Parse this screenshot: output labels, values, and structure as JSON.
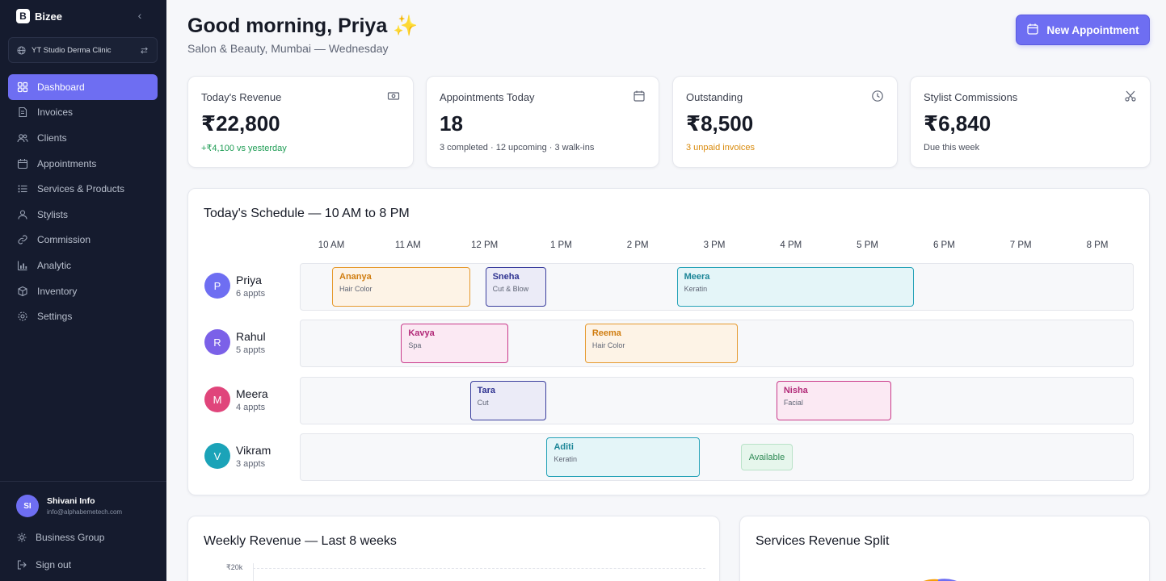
{
  "app": {
    "name": "Bizee",
    "logo_letter": "B"
  },
  "org": {
    "name": "YT Studio Derma Clinic"
  },
  "nav": [
    {
      "label": "Dashboard",
      "icon": "grid-icon",
      "active": true
    },
    {
      "label": "Invoices",
      "icon": "document-icon"
    },
    {
      "label": "Clients",
      "icon": "users-icon"
    },
    {
      "label": "Appointments",
      "icon": "calendar-icon"
    },
    {
      "label": "Services & Products",
      "icon": "list-icon"
    },
    {
      "label": "Stylists",
      "icon": "user-icon"
    },
    {
      "label": "Commission",
      "icon": "link-icon"
    },
    {
      "label": "Analytic",
      "icon": "bar-chart-icon"
    },
    {
      "label": "Inventory",
      "icon": "box-icon"
    },
    {
      "label": "Settings",
      "icon": "gear-icon"
    }
  ],
  "user": {
    "initials": "SI",
    "name": "Shivani Info",
    "email": "info@alphabemetech.com"
  },
  "footer": {
    "business_group": "Business Group",
    "sign_out": "Sign out"
  },
  "header": {
    "greeting": "Good morning, Priya ✨",
    "subtitle": "Salon & Beauty, Mumbai — Wednesday",
    "new_button": "New Appointment"
  },
  "kpis": [
    {
      "title": "Today's Revenue",
      "value": "₹22,800",
      "note": "+₹4,100 vs yesterday",
      "note_color": "#1f9d55",
      "icon": "cash-icon"
    },
    {
      "title": "Appointments Today",
      "value": "18",
      "note": "3 completed · 12 upcoming · 3 walk-ins",
      "note_color": "#4a4f5c",
      "icon": "calendar-icon"
    },
    {
      "title": "Outstanding",
      "value": "₹8,500",
      "note": "3 unpaid invoices",
      "note_color": "#d98a0b",
      "icon": "clock-icon"
    },
    {
      "title": "Stylist Commissions",
      "value": "₹6,840",
      "note": "Due this week",
      "note_color": "#4a4f5c",
      "icon": "scissors-icon"
    }
  ],
  "schedule": {
    "title": "Today's Schedule — 10 AM to 8 PM",
    "hours": [
      "10 AM",
      "11 AM",
      "12 PM",
      "1 PM",
      "2 PM",
      "3 PM",
      "4 PM",
      "5 PM",
      "6 PM",
      "7 PM",
      "8 PM"
    ],
    "staff": [
      {
        "initial": "P",
        "name": "Priya",
        "count": "6 appts",
        "color": "#6e6ef2"
      },
      {
        "initial": "R",
        "name": "Rahul",
        "count": "5 appts",
        "color": "#7b61e8"
      },
      {
        "initial": "M",
        "name": "Meera",
        "count": "4 appts",
        "color": "#e0457b"
      },
      {
        "initial": "V",
        "name": "Vikram",
        "count": "3 appts",
        "color": "#1ba3b8"
      }
    ],
    "appointments": [
      [
        {
          "client": "Ananya",
          "service": "Hair Color",
          "start": 10.0,
          "end": 11.8,
          "border": "#e69a2e",
          "bg": "#fdf3e6",
          "text": "#d07d10"
        },
        {
          "client": "Sneha",
          "service": "Cut & Blow",
          "start": 12.0,
          "end": 12.8,
          "border": "#3b3f9e",
          "bg": "#ebebf7",
          "text": "#2f3391"
        },
        {
          "client": "Meera",
          "service": "Keratin",
          "start": 14.5,
          "end": 17.6,
          "border": "#27a3b8",
          "bg": "#e4f5f8",
          "text": "#1b8597"
        }
      ],
      [
        {
          "client": "Kavya",
          "service": "Spa",
          "start": 10.9,
          "end": 12.3,
          "border": "#c93a8a",
          "bg": "#fbe9f3",
          "text": "#b22a78"
        },
        {
          "client": "Reema",
          "service": "Hair Color",
          "start": 13.3,
          "end": 15.3,
          "border": "#e69a2e",
          "bg": "#fdf3e6",
          "text": "#d07d10"
        }
      ],
      [
        {
          "client": "Tara",
          "service": "Cut",
          "start": 11.8,
          "end": 12.8,
          "border": "#3b3f9e",
          "bg": "#ebebf7",
          "text": "#2f3391"
        },
        {
          "client": "Nisha",
          "service": "Facial",
          "start": 15.8,
          "end": 17.3,
          "border": "#c93a8a",
          "bg": "#fbe9f3",
          "text": "#b22a78"
        }
      ],
      [
        {
          "client": "Aditi",
          "service": "Keratin",
          "start": 12.8,
          "end": 14.8,
          "border": "#27a3b8",
          "bg": "#e4f5f8",
          "text": "#1b8597"
        }
      ]
    ],
    "available_label": "Available"
  },
  "weekly": {
    "title": "Weekly Revenue — Last 8 weeks",
    "top_tick": "₹20k"
  },
  "split": {
    "title": "Services Revenue Split"
  }
}
